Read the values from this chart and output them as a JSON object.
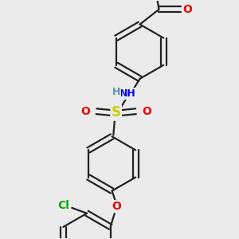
{
  "background_color": "#ebebeb",
  "bond_color": "#222222",
  "bond_width": 1.6,
  "atom_colors": {
    "N": "#0000ee",
    "H": "#5599aa",
    "S": "#cccc00",
    "O": "#ee0000",
    "Cl": "#00aa00",
    "C": "#222222"
  },
  "figsize": [
    3.0,
    3.0
  ],
  "dpi": 100,
  "xlim": [
    -1.5,
    1.5
  ],
  "ylim": [
    -1.7,
    1.8
  ]
}
